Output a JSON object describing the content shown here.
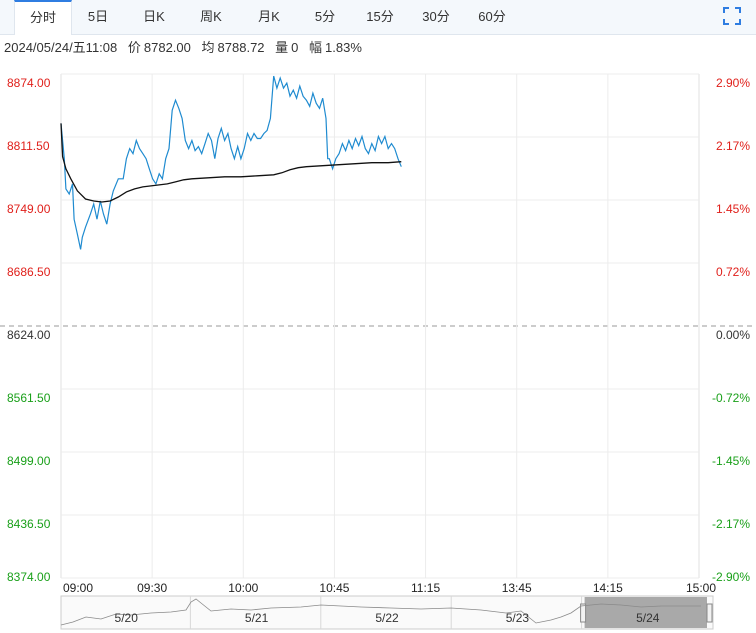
{
  "tabs": [
    "分时",
    "5日",
    "日K",
    "周K",
    "月K",
    "5分",
    "15分",
    "30分",
    "60分"
  ],
  "active_tab": "分时",
  "info": {
    "datetime": "2024/05/24/五11:08",
    "price_label": "价",
    "price": "8782.00",
    "avg_label": "均",
    "avg": "8788.72",
    "vol_label": "量",
    "vol": "0",
    "range_label": "幅",
    "range": "1.83%"
  },
  "colors": {
    "up": "#e0201b",
    "down": "#1aa01a",
    "price_line": "#1f8bd0",
    "avg_line": "#111111",
    "grid": "#ececec",
    "base_line": "#999999"
  },
  "chart_data": {
    "type": "line",
    "base_price": 8624.0,
    "ylim": [
      8374.0,
      8874.0
    ],
    "y_ticks_left": [
      "8874.00",
      "8811.50",
      "8749.00",
      "8686.50",
      "8624.00",
      "8561.50",
      "8499.00",
      "8436.50",
      "8374.00"
    ],
    "y_ticks_right": [
      "2.90%",
      "2.17%",
      "1.45%",
      "0.72%",
      "0.00%",
      "-0.72%",
      "-1.45%",
      "-2.17%",
      "-2.90%"
    ],
    "x_ticks": [
      "09:00",
      "09:30",
      "10:00",
      "10:45",
      "11:15",
      "13:45",
      "14:15",
      "15:00"
    ],
    "x_session_minutes": 390,
    "series": [
      {
        "key": "price",
        "points": [
          [
            0,
            8825
          ],
          [
            2,
            8790
          ],
          [
            3,
            8760
          ],
          [
            5,
            8755
          ],
          [
            7,
            8765
          ],
          [
            8,
            8730
          ],
          [
            10,
            8715
          ],
          [
            12,
            8700
          ],
          [
            13,
            8712
          ],
          [
            15,
            8722
          ],
          [
            18,
            8735
          ],
          [
            20,
            8745
          ],
          [
            22,
            8730
          ],
          [
            24,
            8748
          ],
          [
            26,
            8735
          ],
          [
            28,
            8725
          ],
          [
            30,
            8745
          ],
          [
            32,
            8758
          ],
          [
            35,
            8770
          ],
          [
            38,
            8770
          ],
          [
            40,
            8790
          ],
          [
            42,
            8800
          ],
          [
            44,
            8795
          ],
          [
            46,
            8808
          ],
          [
            48,
            8800
          ],
          [
            50,
            8795
          ],
          [
            52,
            8790
          ],
          [
            54,
            8780
          ],
          [
            56,
            8770
          ],
          [
            58,
            8765
          ],
          [
            60,
            8775
          ],
          [
            62,
            8770
          ],
          [
            64,
            8790
          ],
          [
            66,
            8800
          ],
          [
            68,
            8838
          ],
          [
            70,
            8848
          ],
          [
            72,
            8840
          ],
          [
            74,
            8830
          ],
          [
            76,
            8808
          ],
          [
            78,
            8800
          ],
          [
            80,
            8808
          ],
          [
            82,
            8798
          ],
          [
            84,
            8802
          ],
          [
            86,
            8795
          ],
          [
            88,
            8805
          ],
          [
            90,
            8815
          ],
          [
            92,
            8808
          ],
          [
            94,
            8790
          ],
          [
            96,
            8810
          ],
          [
            98,
            8820
          ],
          [
            100,
            8808
          ],
          [
            102,
            8815
          ],
          [
            104,
            8800
          ],
          [
            106,
            8790
          ],
          [
            108,
            8802
          ],
          [
            110,
            8790
          ],
          [
            112,
            8800
          ],
          [
            114,
            8815
          ],
          [
            116,
            8808
          ],
          [
            118,
            8815
          ],
          [
            120,
            8810
          ],
          [
            122,
            8810
          ],
          [
            124,
            8815
          ],
          [
            126,
            8818
          ],
          [
            128,
            8830
          ],
          [
            130,
            8872
          ],
          [
            132,
            8860
          ],
          [
            134,
            8870
          ],
          [
            136,
            8860
          ],
          [
            138,
            8865
          ],
          [
            140,
            8852
          ],
          [
            142,
            8858
          ],
          [
            144,
            8850
          ],
          [
            146,
            8862
          ],
          [
            148,
            8852
          ],
          [
            150,
            8848
          ],
          [
            152,
            8842
          ],
          [
            154,
            8855
          ],
          [
            156,
            8845
          ],
          [
            158,
            8840
          ],
          [
            160,
            8850
          ],
          [
            162,
            8830
          ],
          [
            163,
            8790
          ],
          [
            164,
            8790
          ],
          [
            166,
            8780
          ],
          [
            168,
            8790
          ],
          [
            170,
            8795
          ],
          [
            172,
            8805
          ],
          [
            174,
            8798
          ],
          [
            176,
            8808
          ],
          [
            178,
            8800
          ],
          [
            180,
            8810
          ],
          [
            182,
            8803
          ],
          [
            184,
            8812
          ],
          [
            186,
            8800
          ],
          [
            188,
            8795
          ],
          [
            190,
            8805
          ],
          [
            192,
            8798
          ],
          [
            194,
            8812
          ],
          [
            196,
            8805
          ],
          [
            198,
            8812
          ],
          [
            200,
            8800
          ],
          [
            202,
            8805
          ],
          [
            204,
            8800
          ],
          [
            206,
            8790
          ],
          [
            208,
            8782
          ]
        ]
      },
      {
        "key": "avg",
        "points": [
          [
            0,
            8825
          ],
          [
            1,
            8792
          ],
          [
            3,
            8780
          ],
          [
            6,
            8770
          ],
          [
            10,
            8758
          ],
          [
            15,
            8750
          ],
          [
            20,
            8748
          ],
          [
            25,
            8747
          ],
          [
            30,
            8748
          ],
          [
            35,
            8752
          ],
          [
            40,
            8757
          ],
          [
            45,
            8760
          ],
          [
            50,
            8762
          ],
          [
            55,
            8763
          ],
          [
            60,
            8764
          ],
          [
            65,
            8765
          ],
          [
            70,
            8767
          ],
          [
            75,
            8769
          ],
          [
            80,
            8770
          ],
          [
            90,
            8771
          ],
          [
            100,
            8772
          ],
          [
            110,
            8772
          ],
          [
            120,
            8773
          ],
          [
            130,
            8774
          ],
          [
            135,
            8776
          ],
          [
            140,
            8779
          ],
          [
            145,
            8781
          ],
          [
            150,
            8782
          ],
          [
            160,
            8783
          ],
          [
            170,
            8784
          ],
          [
            180,
            8785
          ],
          [
            190,
            8786
          ],
          [
            200,
            8786
          ],
          [
            208,
            8787
          ]
        ]
      }
    ],
    "navigator_labels": [
      "5/20",
      "5/21",
      "5/22",
      "5/23",
      "5/24"
    ]
  }
}
